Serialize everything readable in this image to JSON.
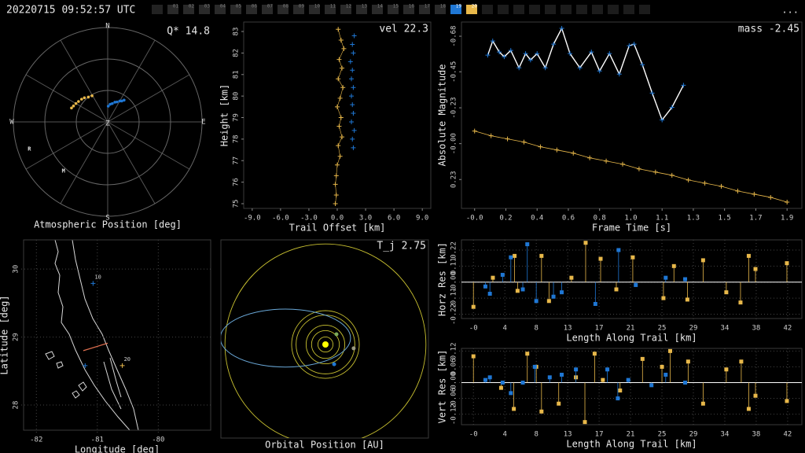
{
  "header": {
    "timestamp": "20220715 09:52:57 UTC",
    "menu": "...",
    "cameras": [
      {
        "label": "01"
      },
      {
        "label": "02"
      },
      {
        "label": "03"
      },
      {
        "label": "04"
      },
      {
        "label": "05"
      },
      {
        "label": "06"
      },
      {
        "label": "07"
      },
      {
        "label": "08"
      },
      {
        "label": "09"
      },
      {
        "label": "10"
      },
      {
        "label": "11"
      },
      {
        "label": "12"
      },
      {
        "label": "13"
      },
      {
        "label": "14"
      },
      {
        "label": "15"
      },
      {
        "label": "16"
      },
      {
        "label": "17"
      },
      {
        "label": "18"
      },
      {
        "label": "19",
        "color": "#1f77d4"
      },
      {
        "label": "20",
        "color": "#e8b84a"
      }
    ]
  },
  "chart_data": [
    {
      "type": "polar",
      "title": "Atmospheric Position [deg]",
      "annotation": "Q* 14.8",
      "directions": [
        "N",
        "E",
        "S",
        "W"
      ],
      "zenith_label": "Z",
      "rlim": [
        0,
        90
      ],
      "rticks": [
        30,
        60,
        90
      ],
      "azimuth_ticks": [
        0,
        30,
        60,
        90,
        120,
        150,
        180,
        210,
        240,
        270,
        300,
        330
      ],
      "series": [
        {
          "color": "#e8b84a",
          "azimuth": [
            291,
            295,
            300,
            305,
            311,
            316,
            322,
            329
          ],
          "zenith": [
            37,
            36,
            35,
            34,
            33,
            32,
            30,
            29
          ]
        },
        {
          "color": "#1f77d4",
          "azimuth": [
            2,
            8,
            14,
            20,
            25,
            30,
            34,
            37
          ],
          "zenith": [
            15,
            17,
            18,
            20,
            21,
            23,
            24,
            26
          ]
        }
      ],
      "stations": [
        {
          "label": "R",
          "azimuth": 251,
          "zenith": 79
        },
        {
          "label": "M",
          "azimuth": 222,
          "zenith": 63
        }
      ]
    },
    {
      "type": "scatter",
      "title": "Trail Offset [km]",
      "y_label": "Height [km]",
      "annotation": "vel 22.3",
      "xlim": [
        -9.9,
        9.9
      ],
      "ylim": [
        74.78,
        83.44
      ],
      "xticks": [
        {
          "value": -9,
          "label": "-9.0"
        },
        {
          "value": -6,
          "label": "-6.0"
        },
        {
          "value": -3,
          "label": "-3.0"
        },
        {
          "value": 0,
          "label": "0.0"
        },
        {
          "value": 3,
          "label": "3.0"
        },
        {
          "value": 6,
          "label": "6.0"
        },
        {
          "value": 9,
          "label": "9.0"
        }
      ],
      "yticks": [
        75,
        76,
        77,
        78,
        79,
        80,
        81,
        82,
        83
      ],
      "series": [
        {
          "color": "#e8b84a",
          "x": [
            0.1,
            0.4,
            0.7,
            0.2,
            0.5,
            0.1,
            0.6,
            0.3,
            0.0,
            0.4,
            0.2,
            0.5,
            0.1,
            0.3,
            0.0,
            -0.1,
            -0.2,
            -0.1,
            -0.2
          ],
          "y": [
            83.1,
            82.6,
            82.2,
            81.7,
            81.3,
            80.8,
            80.4,
            79.9,
            79.5,
            79.0,
            78.6,
            78.1,
            77.7,
            77.2,
            76.8,
            76.3,
            75.9,
            75.4,
            75.0
          ]
        },
        {
          "color": "#1f77d4",
          "x": [
            1.8,
            1.6,
            1.7,
            1.4,
            1.6,
            1.5,
            1.7,
            1.5,
            1.6,
            1.7,
            1.5,
            1.8,
            1.6,
            1.7
          ],
          "y": [
            82.8,
            82.4,
            82.0,
            81.6,
            81.2,
            80.8,
            80.4,
            80.0,
            79.6,
            79.2,
            78.8,
            78.4,
            78.0,
            77.6
          ]
        }
      ]
    },
    {
      "type": "line",
      "title": "Frame Time [s]",
      "y_label": "Absolute Magnitude",
      "annotation": "mass -2.45",
      "xlim": [
        -0.08,
        1.99
      ],
      "ylim": [
        0.41,
        -0.77
      ],
      "xticks": [
        {
          "value": 0,
          "label": "-0.0"
        },
        {
          "value": 0.19,
          "label": "0.2"
        },
        {
          "value": 0.38,
          "label": "0.4"
        },
        {
          "value": 0.57,
          "label": "0.6"
        },
        {
          "value": 0.76,
          "label": "0.8"
        },
        {
          "value": 0.95,
          "label": "1.0"
        },
        {
          "value": 1.14,
          "label": "1.1"
        },
        {
          "value": 1.33,
          "label": "1.3"
        },
        {
          "value": 1.52,
          "label": "1.5"
        },
        {
          "value": 1.71,
          "label": "1.7"
        },
        {
          "value": 1.9,
          "label": "1.9"
        }
      ],
      "yticks": [
        -0.68,
        {
          "value": -0.455,
          "label": "-0.45"
        },
        {
          "value": -0.227,
          "label": "-0.23"
        },
        {
          "value": 0,
          "label": "-0.00"
        },
        {
          "value": 0.227,
          "label": "0.23"
        }
      ],
      "series": [
        {
          "color": "#ffffff",
          "marker_color": "#1f77d4",
          "x": [
            0.08,
            0.11,
            0.15,
            0.18,
            0.22,
            0.27,
            0.31,
            0.34,
            0.38,
            0.43,
            0.48,
            0.53,
            0.58,
            0.64,
            0.71,
            0.76,
            0.82,
            0.88,
            0.94,
            0.97,
            1.02,
            1.08,
            1.14,
            1.2,
            1.27
          ],
          "y": [
            -0.56,
            -0.65,
            -0.58,
            -0.55,
            -0.59,
            -0.48,
            -0.57,
            -0.53,
            -0.57,
            -0.48,
            -0.63,
            -0.73,
            -0.57,
            -0.48,
            -0.58,
            -0.46,
            -0.57,
            -0.44,
            -0.62,
            -0.63,
            -0.5,
            -0.32,
            -0.15,
            -0.23,
            -0.37
          ]
        },
        {
          "color": "#e8b84a",
          "marker_color": "#e8b84a",
          "x": [
            0,
            0.1,
            0.2,
            0.3,
            0.4,
            0.5,
            0.6,
            0.7,
            0.8,
            0.9,
            1.0,
            1.1,
            1.2,
            1.3,
            1.4,
            1.5,
            1.6,
            1.7,
            1.8,
            1.9
          ],
          "y": [
            -0.08,
            -0.05,
            -0.03,
            -0.01,
            0.02,
            0.04,
            0.06,
            0.09,
            0.11,
            0.13,
            0.16,
            0.18,
            0.2,
            0.23,
            0.25,
            0.27,
            0.3,
            0.32,
            0.34,
            0.37
          ]
        }
      ]
    },
    {
      "type": "map",
      "title": "Longitude [deg]",
      "y_label": "Latitude [deg]",
      "xlim": [
        -82.21,
        -79.14
      ],
      "ylim": [
        27.63,
        30.43
      ],
      "xticks": [
        -82,
        -81,
        -80
      ],
      "yticks": [
        28,
        29,
        30
      ],
      "grid": true,
      "track_color": "#e07050",
      "track": {
        "x": [
          -81.23,
          -80.83
        ],
        "y": [
          28.8,
          28.91
        ]
      },
      "stations": [
        {
          "label": "10",
          "x": -81.07,
          "y": 29.79,
          "color": "#1f77d4"
        },
        {
          "label": "20",
          "x": -80.59,
          "y": 28.58,
          "color": "#e8b84a"
        },
        {
          "x": -81.2,
          "y": 28.58,
          "color": "#1f77d4"
        }
      ]
    },
    {
      "type": "orbit",
      "title": "Orbital Position [AU]",
      "annotation": "T_j 2.75",
      "xlim": [
        -5.41,
        5.33
      ],
      "ylim": [
        -4.84,
        5.41
      ],
      "orbits": [
        0.39,
        0.72,
        1.0,
        1.52,
        1.75,
        5.2
      ],
      "orbit_color": "#c8c030",
      "sun_color": "#ffff00",
      "meteoroid": {
        "center": [
          -2.07,
          0.33
        ],
        "semi_axes": [
          3.37,
          1.5
        ],
        "color": "#6aa8d8"
      },
      "bodies": [
        {
          "x": 0.57,
          "y": 0.53,
          "color": "#7caa5a"
        },
        {
          "x": 1.46,
          "y": -0.2,
          "color": "#9a9a80"
        },
        {
          "x": 0.45,
          "y": -1.02,
          "color": "#1f77d4"
        }
      ]
    },
    {
      "type": "stem",
      "title": "Length Along Trail [km]",
      "y_label": "Horz Res [km]",
      "xlim": [
        -1.6,
        43.9
      ],
      "ylim": [
        -0.25,
        0.29
      ],
      "xticks": [
        {
          "value": 0,
          "label": "-0"
        },
        {
          "value": 4.2,
          "label": "4"
        },
        {
          "value": 8.4,
          "label": "8"
        },
        {
          "value": 12.6,
          "label": "13"
        },
        {
          "value": 16.8,
          "label": "17"
        },
        21,
        {
          "value": 25.2,
          "label": "25"
        },
        {
          "value": 29.4,
          "label": "29"
        },
        {
          "value": 33.6,
          "label": "34"
        },
        {
          "value": 37.8,
          "label": "38"
        },
        42
      ],
      "yticks": [
        -0.22,
        -0.11,
        {
          "value": 0,
          "label": "-0.00"
        },
        0.11,
        0.22
      ],
      "grid": true,
      "series": [
        {
          "color": "#e8b84a",
          "x": [
            0,
            2.6,
            5.5,
            5.9,
            9.1,
            10.1,
            13.1,
            15.0,
            17.0,
            19.1,
            21.3,
            25.4,
            26.8,
            28.6,
            30.7,
            33.8,
            35.7,
            36.8,
            37.7,
            41.9
          ],
          "values": [
            -0.17,
            0.03,
            0.18,
            -0.06,
            0.18,
            -0.13,
            0.03,
            0.27,
            0.16,
            -0.05,
            0.17,
            -0.11,
            0.11,
            -0.12,
            0.15,
            -0.07,
            -0.14,
            0.18,
            0.09,
            0.13
          ]
        },
        {
          "color": "#1f77d4",
          "x": [
            1.6,
            2.2,
            3.9,
            5.0,
            6.6,
            7.2,
            8.4,
            10.7,
            11.8,
            16.3,
            19.4,
            21.7,
            25.7,
            28.3
          ],
          "values": [
            -0.03,
            -0.08,
            0.05,
            0.17,
            -0.05,
            0.26,
            -0.13,
            -0.1,
            -0.07,
            -0.15,
            0.22,
            -0.02,
            0.03,
            0.02
          ]
        }
      ]
    },
    {
      "type": "stem",
      "title": "Length Along Trail [km]",
      "y_label": "Vert Res [km]",
      "xlim": [
        -1.6,
        43.9
      ],
      "ylim": [
        -0.16,
        0.13
      ],
      "xticks": [
        {
          "value": 0,
          "label": "-0"
        },
        {
          "value": 4.2,
          "label": "4"
        },
        {
          "value": 8.4,
          "label": "8"
        },
        {
          "value": 12.6,
          "label": "13"
        },
        {
          "value": 16.8,
          "label": "17"
        },
        21,
        {
          "value": 25.2,
          "label": "25"
        },
        {
          "value": 29.4,
          "label": "29"
        },
        {
          "value": 33.6,
          "label": "34"
        },
        {
          "value": 37.8,
          "label": "38"
        },
        42
      ],
      "yticks": [
        -0.12,
        -0.06,
        {
          "value": 0,
          "label": "-0.00"
        },
        0.06,
        0.12
      ],
      "grid": true,
      "series": [
        {
          "color": "#e8b84a",
          "x": [
            0,
            3.7,
            5.4,
            7.2,
            8.4,
            9.1,
            11.4,
            13.7,
            14.9,
            16.2,
            17.3,
            19.6,
            22.6,
            25.2,
            26.3,
            28.7,
            30.7,
            33.8,
            35.8,
            36.8,
            37.7,
            41.9
          ],
          "values": [
            0.1,
            -0.02,
            -0.1,
            0.11,
            0.06,
            -0.11,
            -0.08,
            0.02,
            -0.15,
            0.11,
            0.01,
            -0.03,
            0.09,
            0.06,
            0.12,
            0.08,
            -0.08,
            0.05,
            0.08,
            -0.1,
            -0.05,
            -0.07
          ]
        },
        {
          "color": "#1f77d4",
          "x": [
            1.6,
            2.2,
            3.9,
            5.0,
            6.6,
            8.2,
            10.2,
            11.8,
            13.7,
            17.9,
            19.3,
            20.7,
            23.8,
            25.7,
            28.3
          ],
          "values": [
            0.01,
            0.02,
            0.0,
            -0.04,
            0.0,
            0.06,
            0.02,
            0.03,
            0.05,
            0.05,
            -0.06,
            0.01,
            -0.01,
            0.03,
            0.0
          ]
        }
      ]
    }
  ]
}
